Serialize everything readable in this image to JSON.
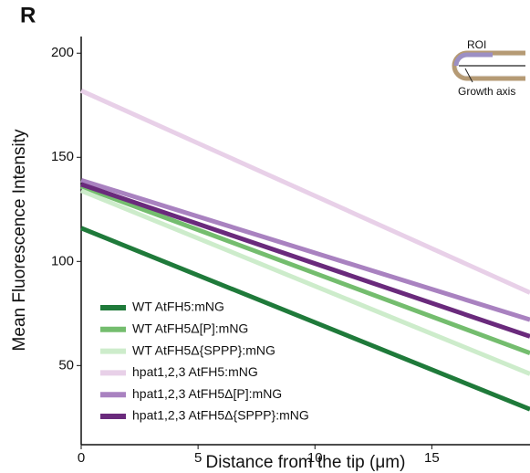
{
  "panel_label": "R",
  "inset": {
    "roi_label": "ROI",
    "axis_label": "Growth axis"
  },
  "chart_data": {
    "type": "line",
    "xlabel": "Distance from the tip (μm)",
    "ylabel": "Mean Fluorescence Intensity",
    "x": [
      0,
      19.2
    ],
    "xlim": [
      0,
      19.2
    ],
    "xticks": [
      0,
      5,
      10,
      15
    ],
    "ylim": [
      12,
      208
    ],
    "yticks": [
      50,
      100,
      150,
      200
    ],
    "grid": false,
    "legend": "lower left",
    "series": [
      {
        "name": "WT AtFH5:mNG",
        "color": "#1f7a3a",
        "values": [
          116,
          29
        ]
      },
      {
        "name": "WT AtFH5Δ[P]:mNG",
        "color": "#74bd6e",
        "values": [
          136,
          56
        ]
      },
      {
        "name": "WT AtFH5Δ{SPPP}:mNG",
        "color": "#cdeccb",
        "values": [
          134,
          46
        ]
      },
      {
        "name": "hpat1,2,3 AtFH5:mNG",
        "color": "#e8d0e8",
        "values": [
          182,
          85
        ]
      },
      {
        "name": "hpat1,2,3 AtFH5Δ[P]:mNG",
        "color": "#a982c0",
        "values": [
          139,
          72
        ]
      },
      {
        "name": "hpat1,2,3 AtFH5Δ{SPPP}:mNG",
        "color": "#6a2a7c",
        "values": [
          137,
          64
        ]
      }
    ]
  }
}
